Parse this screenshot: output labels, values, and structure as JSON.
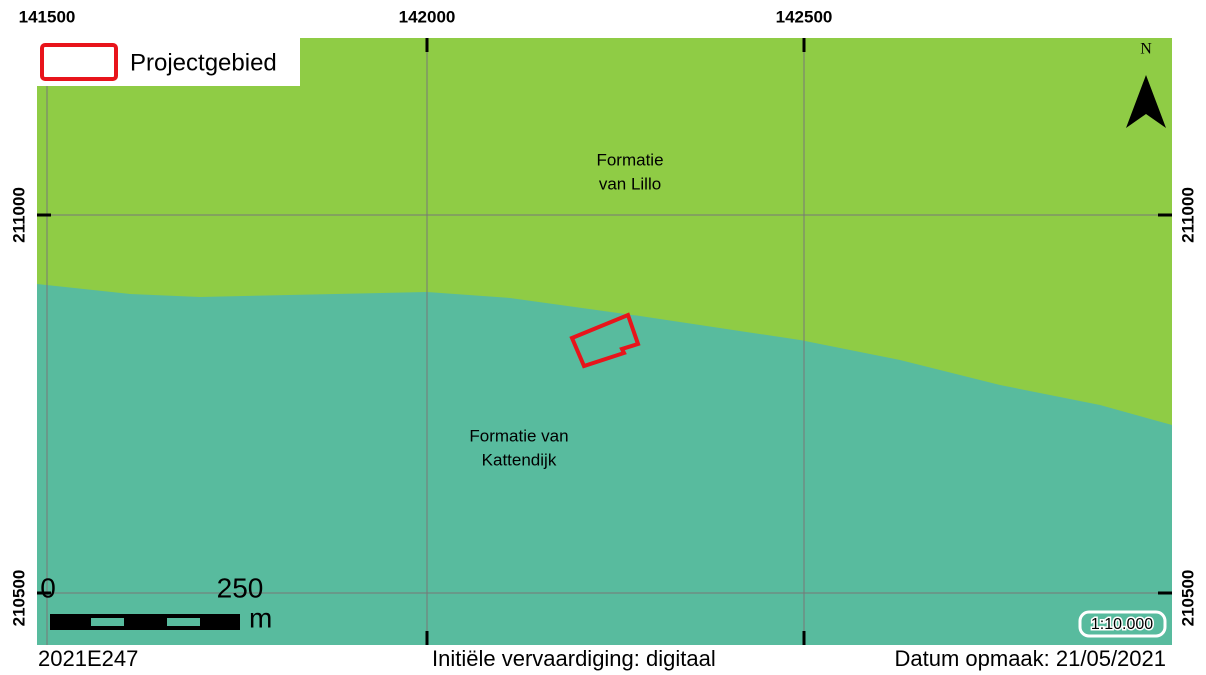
{
  "map": {
    "top_coords": [
      "141500",
      "142000",
      "142500"
    ],
    "side_coords": [
      "211000",
      "210500"
    ],
    "legend": {
      "label": "Projectgebied"
    },
    "north": "N",
    "areas": [
      {
        "lines": [
          "Formatie",
          "van Lillo"
        ]
      },
      {
        "lines": [
          "Formatie van",
          "Kattendijk"
        ]
      }
    ],
    "scale_bar": {
      "start": "0",
      "end": "250",
      "unit": "m"
    },
    "scale": "1:10.000",
    "footer": {
      "left": "2021E247",
      "center": "Initiële vervaardiging: digitaal",
      "right": "Datum opmaak: 21/05/2021"
    }
  }
}
